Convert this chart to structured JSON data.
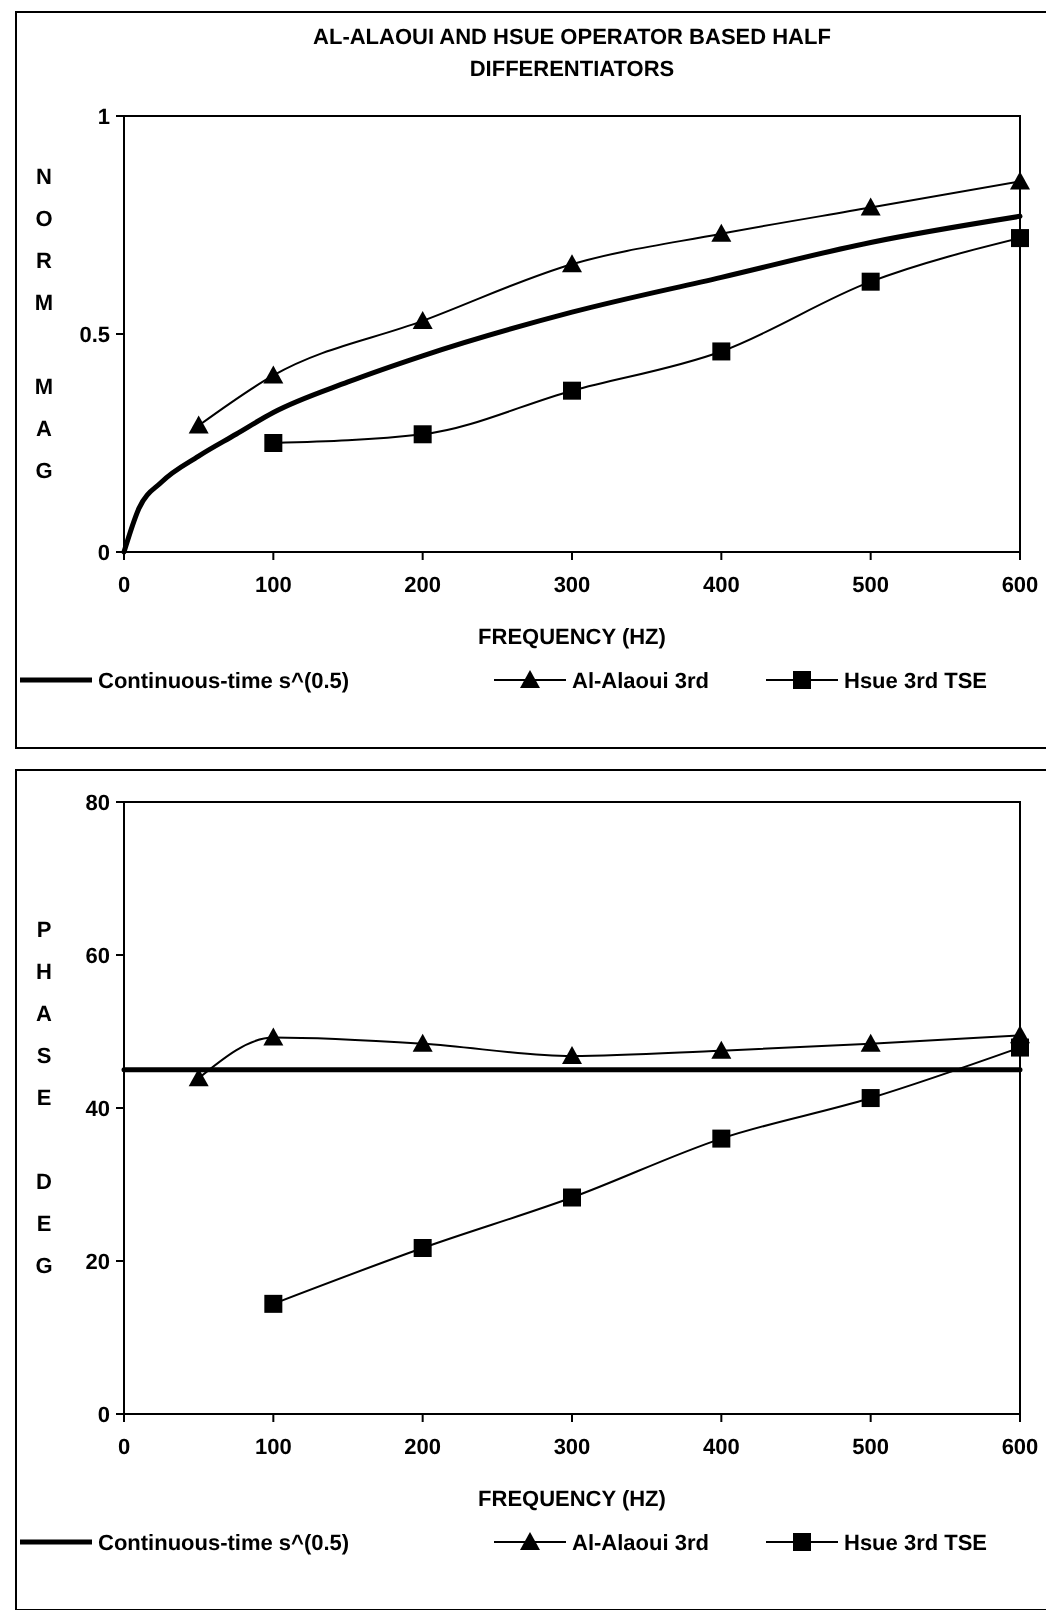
{
  "chart_data": [
    {
      "type": "line",
      "title": "AL-ALAOUI AND HSUE OPERATOR BASED HALF DIFFERENTIATORS",
      "xlabel": "FREQUENCY (HZ)",
      "ylabel": "NORM MAG",
      "xlim": [
        0,
        600
      ],
      "xticks": [
        0,
        100,
        200,
        300,
        400,
        500,
        600
      ],
      "ylim": [
        0,
        1
      ],
      "yticks": [
        0,
        0.5,
        1
      ],
      "grid": false,
      "legend": "bottom",
      "series": [
        {
          "name": "Continuous-time s^(0.5)",
          "color": "#000000",
          "marker": "none",
          "x": [
            0,
            10,
            25,
            50,
            75,
            100,
            150,
            200,
            300,
            400,
            500,
            600
          ],
          "values": [
            0,
            0.1,
            0.16,
            0.22,
            0.27,
            0.32,
            0.39,
            0.45,
            0.55,
            0.63,
            0.71,
            0.77
          ]
        },
        {
          "name": "Al-Alaoui 3rd",
          "color": "#000000",
          "marker": "triangle",
          "x": [
            50,
            100,
            200,
            300,
            400,
            500,
            600
          ],
          "values": [
            0.29,
            0.405,
            0.53,
            0.66,
            0.73,
            0.79,
            0.85
          ]
        },
        {
          "name": "Hsue 3rd TSE",
          "color": "#000000",
          "marker": "square",
          "x": [
            100,
            200,
            300,
            400,
            500,
            600
          ],
          "values": [
            0.25,
            0.27,
            0.37,
            0.46,
            0.62,
            0.72
          ]
        }
      ]
    },
    {
      "type": "line",
      "xlabel": "FREQUENCY (HZ)",
      "ylabel": "PHASE DEG",
      "xlim": [
        0,
        600
      ],
      "xticks": [
        0,
        100,
        200,
        300,
        400,
        500,
        600
      ],
      "ylim": [
        0,
        80
      ],
      "yticks": [
        0,
        20,
        40,
        60,
        80
      ],
      "grid": false,
      "legend": "bottom",
      "series": [
        {
          "name": "Continuous-time s^(0.5)",
          "color": "#000000",
          "marker": "none",
          "x": [
            0,
            600
          ],
          "values": [
            45,
            45
          ]
        },
        {
          "name": "Al-Alaoui 3rd",
          "color": "#000000",
          "marker": "triangle",
          "x": [
            50,
            100,
            200,
            300,
            400,
            500,
            600
          ],
          "values": [
            43.9,
            49.2,
            48.4,
            46.8,
            47.5,
            48.4,
            49.5
          ]
        },
        {
          "name": "Hsue 3rd TSE",
          "color": "#000000",
          "marker": "square",
          "x": [
            100,
            200,
            300,
            400,
            500,
            600
          ],
          "values": [
            14.4,
            21.7,
            28.3,
            36,
            41.3,
            47.9
          ]
        }
      ]
    }
  ]
}
